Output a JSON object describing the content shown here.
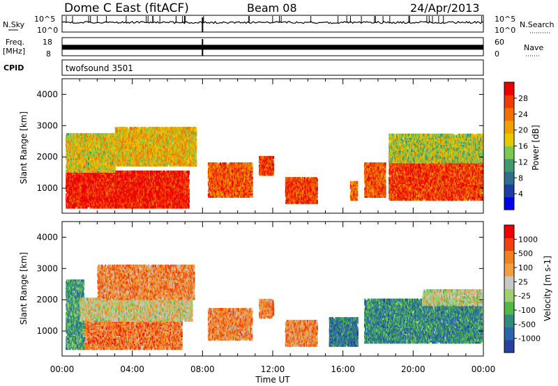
{
  "header": {
    "station": "Dome C East (fitACF)",
    "beam": "Beam 08",
    "date": "24/Apr/2013"
  },
  "side_labels": {
    "n_sky": "N.Sky",
    "n_search": "N.Search",
    "freq": "Freq.",
    "mhz": "[MHz]",
    "nave": "Nave",
    "cpid": "CPID"
  },
  "top_panel": {
    "left_top": "10^5",
    "left_bottom": "10^0",
    "right_top": "10^5",
    "right_bottom": "10^0"
  },
  "freq_panel": {
    "left_top": "18",
    "left_bottom": "8",
    "right_top": "60",
    "right_bottom": "0"
  },
  "cpid_panel": {
    "program": "twofsound 3501"
  },
  "colors": {
    "power_scale": [
      "#0000ee",
      "#1e3ca8",
      "#2f6e8c",
      "#3f9a6e",
      "#7cc850",
      "#e8c800",
      "#f0a000",
      "#f07000",
      "#f03c00",
      "#ee0000"
    ],
    "velocity_scale": [
      "#2a3fa0",
      "#2a66a8",
      "#2f8c7c",
      "#52b848",
      "#9cd070",
      "#c8c8c8",
      "#f0a040",
      "#f08020",
      "#f04010",
      "#ee0000"
    ]
  },
  "chart_data": [
    {
      "type": "heatmap",
      "name": "power",
      "ylabel": "Slant Range [km]",
      "xlabel": "Time UT",
      "xticks": [
        "00:00",
        "04:00",
        "08:00",
        "12:00",
        "16:00",
        "20:00",
        "00:00"
      ],
      "yticks": [
        1000,
        2000,
        3000,
        4000
      ],
      "ylim": [
        200,
        4500
      ],
      "xlim_hours": [
        0,
        24
      ],
      "colorbar": {
        "label": "Power [dB]",
        "ticks": [
          "4",
          "8",
          "12",
          "16",
          "20",
          "24",
          "28"
        ],
        "range": [
          0,
          30
        ]
      },
      "blobs": [
        {
          "t0": 0.2,
          "t1": 7.2,
          "r0": 350,
          "r1": 1500,
          "level": 0.92
        },
        {
          "t0": 0.2,
          "t1": 3.0,
          "r0": 1500,
          "r1": 2700,
          "level": 0.55
        },
        {
          "t0": 3.0,
          "t1": 7.6,
          "r0": 1700,
          "r1": 2900,
          "level": 0.6
        },
        {
          "t0": 8.3,
          "t1": 10.8,
          "r0": 700,
          "r1": 1800,
          "level": 0.8
        },
        {
          "t0": 11.2,
          "t1": 12.0,
          "r0": 1400,
          "r1": 2000,
          "level": 0.85
        },
        {
          "t0": 12.7,
          "t1": 14.5,
          "r0": 500,
          "r1": 1300,
          "level": 0.85
        },
        {
          "t0": 16.4,
          "t1": 16.8,
          "r0": 600,
          "r1": 1200,
          "level": 0.75
        },
        {
          "t0": 17.2,
          "t1": 18.4,
          "r0": 700,
          "r1": 1800,
          "level": 0.8
        },
        {
          "t0": 18.6,
          "t1": 23.9,
          "r0": 600,
          "r1": 2100,
          "level": 0.85
        },
        {
          "t0": 18.6,
          "t1": 23.9,
          "r0": 1800,
          "r1": 2700,
          "level": 0.5
        }
      ]
    },
    {
      "type": "heatmap",
      "name": "velocity",
      "ylabel": "Slant Range [km]",
      "xlabel": "Time UT",
      "xticks": [
        "00:00",
        "04:00",
        "08:00",
        "12:00",
        "16:00",
        "20:00",
        "00:00"
      ],
      "yticks": [
        1000,
        2000,
        3000,
        4000
      ],
      "ylim": [
        200,
        4500
      ],
      "xlim_hours": [
        0,
        24
      ],
      "colorbar": {
        "label": "Velocity [m s-1]",
        "ticks": [
          "1000",
          "500",
          "100",
          "25",
          "-25",
          "-100",
          "-500",
          "-1000"
        ],
        "range": [
          -1000,
          1000
        ]
      },
      "blobs": [
        {
          "t0": 0.8,
          "t1": 6.8,
          "r0": 400,
          "r1": 1300,
          "level": 0.75
        },
        {
          "t0": 0.2,
          "t1": 1.2,
          "r0": 400,
          "r1": 2600,
          "level": 0.3
        },
        {
          "t0": 1.0,
          "t1": 7.4,
          "r0": 1300,
          "r1": 2000,
          "level": 0.55
        },
        {
          "t0": 2.0,
          "t1": 7.5,
          "r0": 2000,
          "r1": 3100,
          "level": 0.72
        },
        {
          "t0": 8.3,
          "t1": 10.8,
          "r0": 700,
          "r1": 1700,
          "level": 0.72
        },
        {
          "t0": 11.2,
          "t1": 12.0,
          "r0": 1400,
          "r1": 2000,
          "level": 0.72
        },
        {
          "t0": 12.7,
          "t1": 14.5,
          "r0": 500,
          "r1": 1300,
          "level": 0.72
        },
        {
          "t0": 15.2,
          "t1": 16.8,
          "r0": 500,
          "r1": 1400,
          "level": 0.2
        },
        {
          "t0": 17.2,
          "t1": 23.9,
          "r0": 600,
          "r1": 2000,
          "level": 0.25
        },
        {
          "t0": 20.5,
          "t1": 23.9,
          "r0": 1800,
          "r1": 2300,
          "level": 0.5
        }
      ]
    }
  ],
  "time_series": {
    "nsky_level_fraction": 0.55,
    "freq_level_fraction": 0.18,
    "nave_level_fraction": 0.28
  }
}
